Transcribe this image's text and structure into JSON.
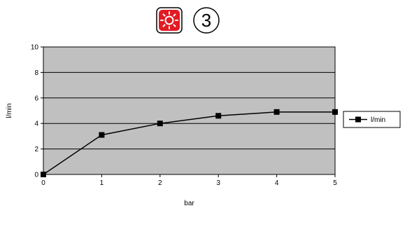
{
  "header": {
    "icon_name": "sun-icon",
    "icon_color": "#e21b23",
    "badge_number": "3"
  },
  "chart_data": {
    "type": "line",
    "x": [
      0,
      1,
      2,
      3,
      4,
      5
    ],
    "series": [
      {
        "name": "l/min",
        "values": [
          0,
          3.1,
          4.0,
          4.6,
          4.9,
          4.9
        ]
      }
    ],
    "xlabel": "bar",
    "ylabel": "l/min",
    "xlim": [
      0,
      5
    ],
    "ylim": [
      0,
      10
    ],
    "xticks": [
      0,
      1,
      2,
      3,
      4,
      5
    ],
    "yticks": [
      0,
      2,
      4,
      6,
      8,
      10
    ],
    "grid": true,
    "legend": "right",
    "plot_background": "#c0c0c0",
    "line_color": "#000000"
  }
}
